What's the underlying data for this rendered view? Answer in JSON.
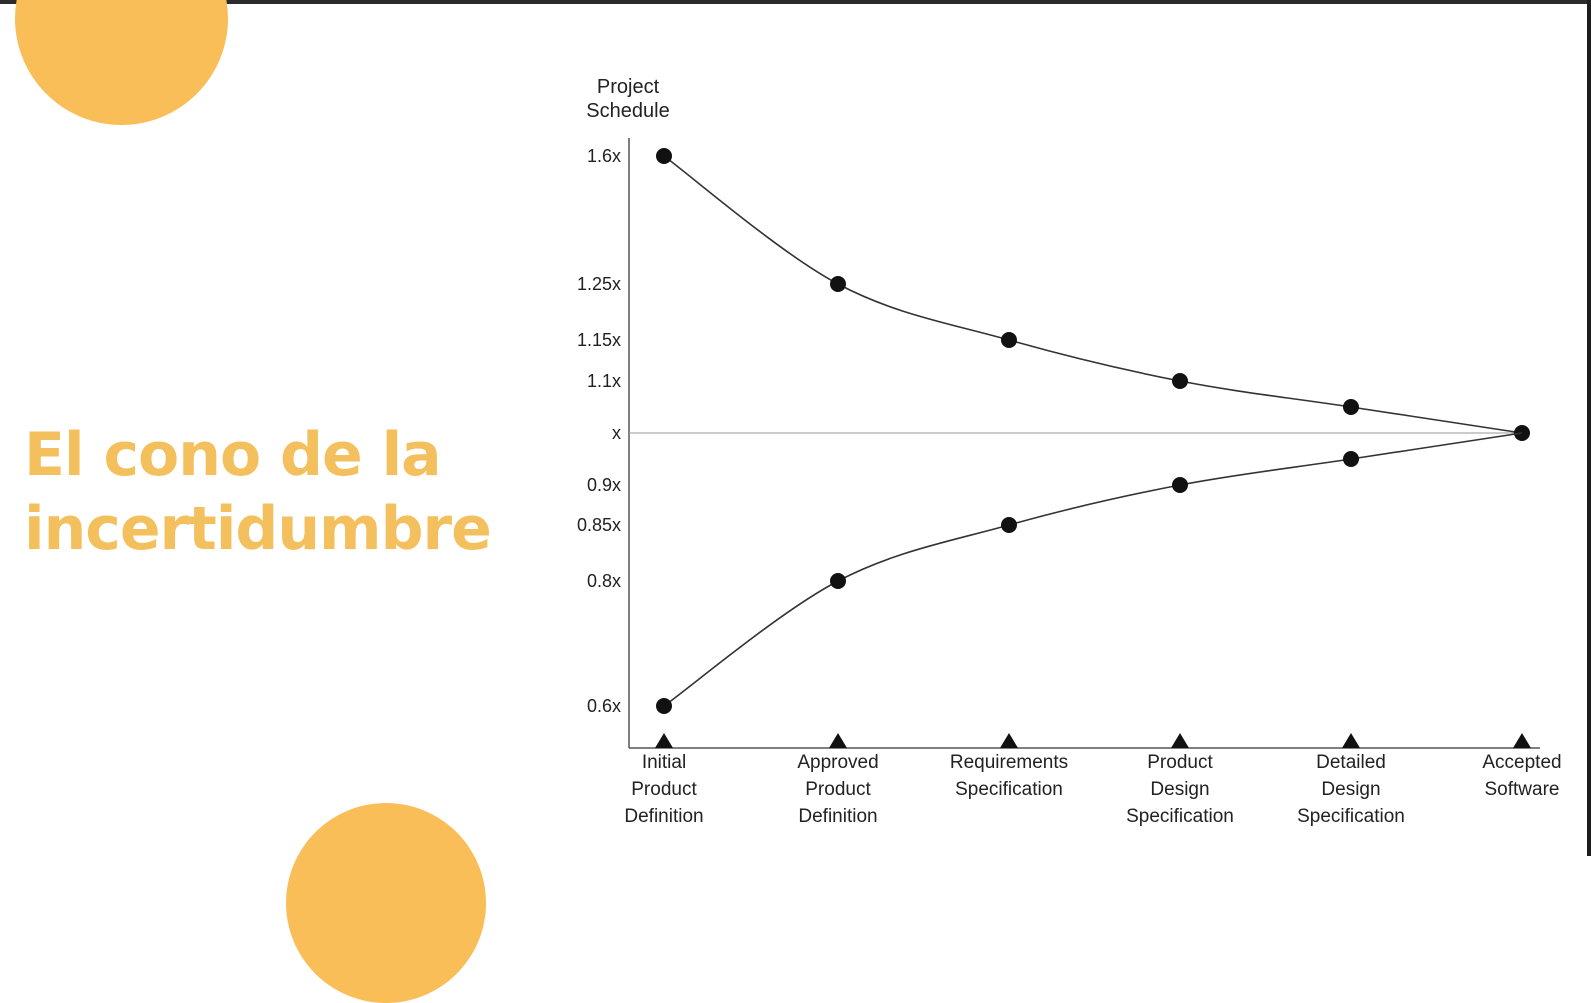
{
  "slide": {
    "title_lines": [
      "El cono de la",
      "incertidumbre"
    ],
    "accent_color": "#F9BE57",
    "title_color": "#F4C05E"
  },
  "chart_data": {
    "type": "line",
    "title": "",
    "ylabel": "Project Schedule",
    "xlabel": "",
    "categories": [
      "Initial Product Definition",
      "Approved Product Definition",
      "Requirements Specification",
      "Product Design Specification",
      "Detailed Design Specification",
      "Accepted Software"
    ],
    "category_label_lines": [
      [
        "Initial",
        "Product",
        "Definition"
      ],
      [
        "Approved",
        "Product",
        "Definition"
      ],
      [
        "Requirements",
        "Specification"
      ],
      [
        "Product",
        "Design",
        "Specification"
      ],
      [
        "Detailed",
        "Design",
        "Specification"
      ],
      [
        "Accepted",
        "Software"
      ]
    ],
    "y_ticks": [
      {
        "value": 1.6,
        "label": "1.6x"
      },
      {
        "value": 1.25,
        "label": "1.25x"
      },
      {
        "value": 1.15,
        "label": "1.15x"
      },
      {
        "value": 1.1,
        "label": "1.1x"
      },
      {
        "value": 1.0,
        "label": "x"
      },
      {
        "value": 0.9,
        "label": "0.9x"
      },
      {
        "value": 0.85,
        "label": "0.85x"
      },
      {
        "value": 0.8,
        "label": "0.8x"
      },
      {
        "value": 0.6,
        "label": "0.6x"
      }
    ],
    "series": [
      {
        "values": [
          1.6,
          1.25,
          1.15,
          1.1,
          1.05,
          1.0
        ]
      },
      {
        "values": [
          0.6,
          0.8,
          0.85,
          0.9,
          0.95,
          1.0
        ]
      }
    ],
    "baseline": 1.0,
    "line_color": "#333333",
    "marker_color": "#111111"
  }
}
